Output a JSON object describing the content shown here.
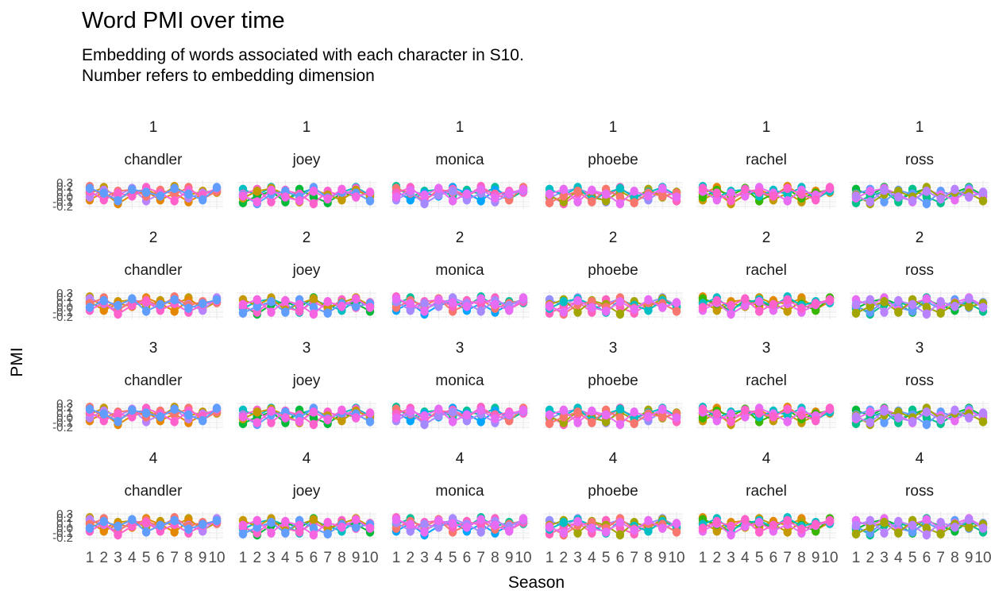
{
  "page": {
    "title": "Word PMI over time",
    "subtitle_line1": "Embedding of words associated with each character in S10.",
    "subtitle_line2": "Number refers to embedding dimension"
  },
  "colors": {
    "background": "#ffffff",
    "title_text": "#000000",
    "strip_text": "#1a1a1a",
    "axis_text": "#4d4d4d",
    "grid_major": "#e7e7e7",
    "grid_minor": "#f3f3f3"
  },
  "chart_data": {
    "type": "line",
    "title": "Word PMI over time",
    "subtitle": [
      "Embedding of words associated with each character in S10.",
      "Number refers to embedding dimension"
    ],
    "xlabel": "Season",
    "ylabel": "PMI",
    "x": [
      1,
      2,
      3,
      4,
      5,
      6,
      7,
      8,
      9,
      10
    ],
    "x_tick_labels": [
      "1",
      "2",
      "3",
      "4",
      "5",
      "6",
      "7",
      "8",
      "9",
      "10"
    ],
    "y_tick_labels": [
      "0.3",
      "0.2",
      "0.1",
      "0.0",
      "-0.1",
      "-0.2"
    ],
    "y_tick_values": [
      0.3,
      0.2,
      0.1,
      0.0,
      -0.1,
      -0.2
    ],
    "ylim": [
      -0.25,
      0.35
    ],
    "grid": "major and minor, light gray on white, no panel border",
    "legend": "none",
    "facet_rows": [
      "1",
      "2",
      "3",
      "4"
    ],
    "facet_cols": [
      "chandler",
      "joey",
      "monica",
      "phoebe",
      "rachel",
      "ross"
    ],
    "palettes": {
      "chandler": [
        "#c49a00",
        "#e58700",
        "#b983ff",
        "#f8766d",
        "#ff61cc",
        "#619cff"
      ],
      "joey": [
        "#00bfc4",
        "#00ba38",
        "#ff61cc",
        "#c49a00",
        "#619cff",
        "#f564e3"
      ],
      "monica": [
        "#00c19a",
        "#00a5ff",
        "#f8766d",
        "#ff61c3",
        "#a58aff",
        "#e76bf3"
      ],
      "phoebe": [
        "#9590ff",
        "#ff62bc",
        "#a3a500",
        "#00bfc4",
        "#f8766d",
        "#e76bf3"
      ],
      "rachel": [
        "#e58700",
        "#c49a00",
        "#39b600",
        "#00bfc4",
        "#e76bf3",
        "#ff61cc"
      ],
      "ross": [
        "#00ba38",
        "#00c08b",
        "#619cff",
        "#e76bf3",
        "#a3a500",
        "#b983ff"
      ]
    },
    "patterns": [
      [
        0.08,
        0.2,
        -0.04,
        0.1,
        0.16,
        0.02,
        0.22,
        0.04,
        0.12,
        0.1
      ],
      [
        0.02,
        -0.1,
        0.14,
        0,
        -0.08,
        0.12,
        -0.04,
        0.16,
        0,
        0.1
      ],
      [
        -0.06,
        0.1,
        -0.14,
        0.04,
        0.12,
        -0.06,
        0.08,
        -0.1,
        0.06,
        0.14
      ],
      [
        0.16,
        0.04,
        0.2,
        -0.06,
        0.08,
        0.18,
        0,
        0.1,
        0.2,
        0.04
      ],
      [
        0,
        0.14,
        0.04,
        0.18,
        -0.08,
        0.06,
        0.16,
        -0.02,
        0.08,
        0.16
      ],
      [
        -0.12,
        0.02,
        0.12,
        -0.1,
        0.16,
        0,
        -0.12,
        0.08,
        0.02,
        0.08
      ],
      [
        0.22,
        0,
        0.12,
        0.16,
        0.02,
        0.14,
        0.06,
        0.2,
        -0.04,
        0.12
      ],
      [
        0.06,
        0.16,
        -0.1,
        0.14,
        0.06,
        -0.14,
        0.12,
        0.02,
        0.18,
        0
      ],
      [
        0.12,
        -0.06,
        0.08,
        0.02,
        0.2,
        0.08,
        -0.08,
        0.14,
        0.04,
        0.18
      ],
      [
        -0.02,
        0.12,
        0.18,
        0.06,
        -0.1,
        0.16,
        0.04,
        -0.06,
        0.14,
        0.02
      ],
      [
        0.18,
        0.08,
        -0.08,
        0.16,
        0.1,
        0.02,
        0.18,
        0.06,
        -0.06,
        0.2
      ],
      [
        0.04,
        -0.14,
        0.06,
        0.12,
        0,
        0.2,
        -0.02,
        0.1,
        0.08,
        -0.08
      ]
    ],
    "facets": [
      {
        "dim": "1",
        "character": "chandler",
        "patterns": [
          0,
          2,
          4,
          6,
          8,
          10
        ]
      },
      {
        "dim": "1",
        "character": "joey",
        "patterns": [
          3,
          5,
          7,
          9,
          11,
          1
        ]
      },
      {
        "dim": "1",
        "character": "monica",
        "patterns": [
          6,
          8,
          10,
          0,
          2,
          4
        ]
      },
      {
        "dim": "1",
        "character": "phoebe",
        "patterns": [
          9,
          11,
          1,
          3,
          5,
          7
        ]
      },
      {
        "dim": "1",
        "character": "rachel",
        "patterns": [
          0,
          2,
          4,
          6,
          8,
          10
        ]
      },
      {
        "dim": "1",
        "character": "ross",
        "patterns": [
          3,
          5,
          7,
          9,
          11,
          1
        ]
      },
      {
        "dim": "2",
        "character": "chandler",
        "patterns": [
          6,
          8,
          10,
          0,
          2,
          4
        ]
      },
      {
        "dim": "2",
        "character": "joey",
        "patterns": [
          9,
          11,
          1,
          3,
          5,
          7
        ]
      },
      {
        "dim": "2",
        "character": "monica",
        "patterns": [
          0,
          2,
          4,
          6,
          8,
          10
        ]
      },
      {
        "dim": "2",
        "character": "phoebe",
        "patterns": [
          3,
          5,
          7,
          9,
          11,
          1
        ]
      },
      {
        "dim": "2",
        "character": "rachel",
        "patterns": [
          6,
          8,
          10,
          0,
          2,
          4
        ]
      },
      {
        "dim": "2",
        "character": "ross",
        "patterns": [
          9,
          11,
          1,
          3,
          5,
          7
        ]
      },
      {
        "dim": "3",
        "character": "chandler",
        "patterns": [
          0,
          2,
          4,
          6,
          8,
          10
        ]
      },
      {
        "dim": "3",
        "character": "joey",
        "patterns": [
          3,
          5,
          7,
          9,
          11,
          1
        ]
      },
      {
        "dim": "3",
        "character": "monica",
        "patterns": [
          6,
          8,
          10,
          0,
          2,
          4
        ]
      },
      {
        "dim": "3",
        "character": "phoebe",
        "patterns": [
          9,
          11,
          1,
          3,
          5,
          7
        ]
      },
      {
        "dim": "3",
        "character": "rachel",
        "patterns": [
          0,
          2,
          4,
          6,
          8,
          10
        ]
      },
      {
        "dim": "3",
        "character": "ross",
        "patterns": [
          3,
          5,
          7,
          9,
          11,
          1
        ]
      },
      {
        "dim": "4",
        "character": "chandler",
        "patterns": [
          6,
          8,
          10,
          0,
          2,
          4
        ]
      },
      {
        "dim": "4",
        "character": "joey",
        "patterns": [
          9,
          11,
          1,
          3,
          5,
          7
        ]
      },
      {
        "dim": "4",
        "character": "monica",
        "patterns": [
          0,
          2,
          4,
          6,
          8,
          10
        ]
      },
      {
        "dim": "4",
        "character": "phoebe",
        "patterns": [
          3,
          5,
          7,
          9,
          11,
          1
        ]
      },
      {
        "dim": "4",
        "character": "rachel",
        "patterns": [
          6,
          8,
          10,
          0,
          2,
          4
        ]
      },
      {
        "dim": "4",
        "character": "ross",
        "patterns": [
          9,
          11,
          1,
          3,
          5,
          7
        ]
      }
    ]
  }
}
